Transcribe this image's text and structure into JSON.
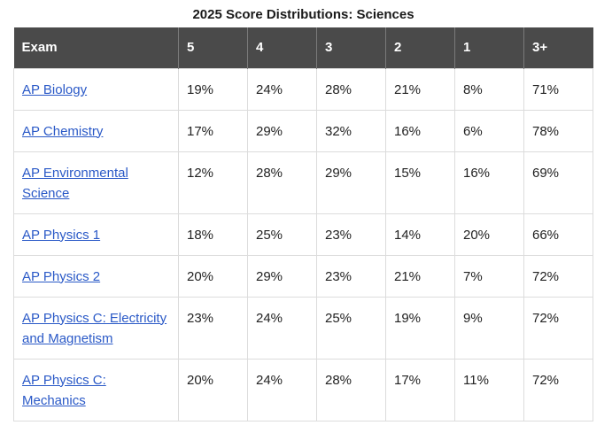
{
  "caption": "2025 Score Distributions: Sciences",
  "headers": [
    "Exam",
    "5",
    "4",
    "3",
    "2",
    "1",
    "3+"
  ],
  "rows": [
    {
      "exam": "AP Biology",
      "s5": "19%",
      "s4": "24%",
      "s3": "28%",
      "s2": "21%",
      "s1": "8%",
      "s3plus": "71%"
    },
    {
      "exam": "AP Chemistry",
      "s5": "17%",
      "s4": "29%",
      "s3": "32%",
      "s2": "16%",
      "s1": "6%",
      "s3plus": "78%"
    },
    {
      "exam": "AP Environmental Science",
      "s5": "12%",
      "s4": "28%",
      "s3": "29%",
      "s2": "15%",
      "s1": "16%",
      "s3plus": "69%"
    },
    {
      "exam": "AP Physics 1",
      "s5": "18%",
      "s4": "25%",
      "s3": "23%",
      "s2": "14%",
      "s1": "20%",
      "s3plus": "66%"
    },
    {
      "exam": "AP Physics 2",
      "s5": "20%",
      "s4": "29%",
      "s3": "23%",
      "s2": "21%",
      "s1": "7%",
      "s3plus": "72%"
    },
    {
      "exam": "AP Physics C: Electricity and Magnetism",
      "s5": "23%",
      "s4": "24%",
      "s3": "25%",
      "s2": "19%",
      "s1": "9%",
      "s3plus": "72%"
    },
    {
      "exam": "AP Physics C: Mechanics",
      "s5": "20%",
      "s4": "24%",
      "s3": "28%",
      "s2": "17%",
      "s1": "11%",
      "s3plus": "72%"
    }
  ],
  "colors": {
    "header_bg": "#4a4a4a",
    "header_text": "#ffffff",
    "link": "#2a59c7",
    "border": "#dcdcdc"
  }
}
